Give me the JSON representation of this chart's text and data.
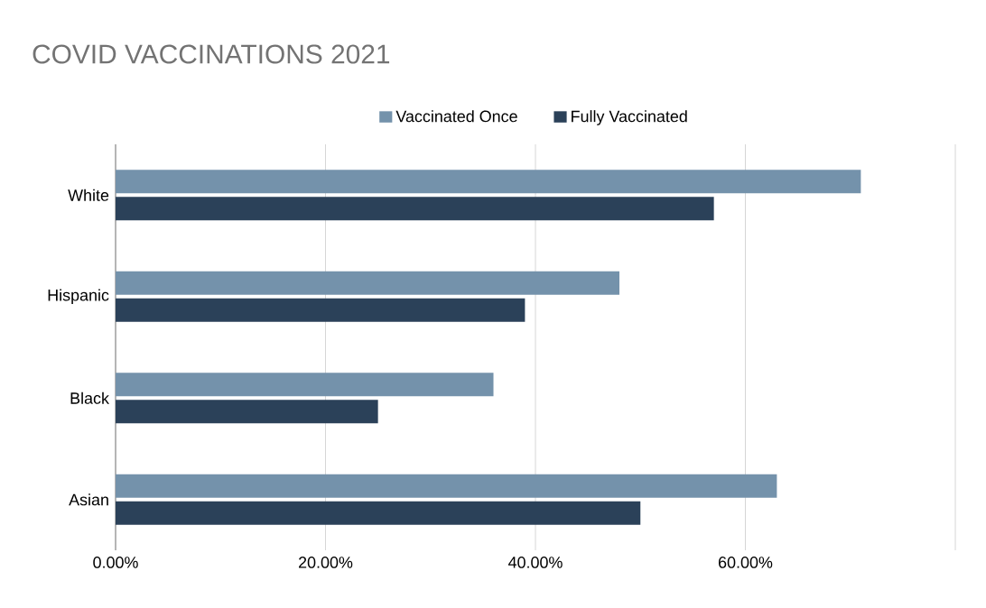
{
  "chart_data": {
    "type": "bar",
    "orientation": "horizontal",
    "title": "COVID VACCINATIONS 2021",
    "categories": [
      "White",
      "Hispanic",
      "Black",
      "Asian"
    ],
    "series": [
      {
        "name": "Vaccinated Once",
        "color": "#7492ab",
        "values": [
          71,
          48,
          36,
          63
        ]
      },
      {
        "name": "Fully Vaccinated",
        "color": "#2b4159",
        "values": [
          57,
          39,
          25,
          50
        ]
      }
    ],
    "xlim": [
      0,
      80
    ],
    "xticks": [
      {
        "value": 0,
        "label": "0.00%"
      },
      {
        "value": 20,
        "label": "20.00%"
      },
      {
        "value": 40,
        "label": "40.00%"
      },
      {
        "value": 60,
        "label": "60.00%"
      },
      {
        "value": 80,
        "label": null
      }
    ],
    "grid": "x",
    "legend": "top"
  }
}
